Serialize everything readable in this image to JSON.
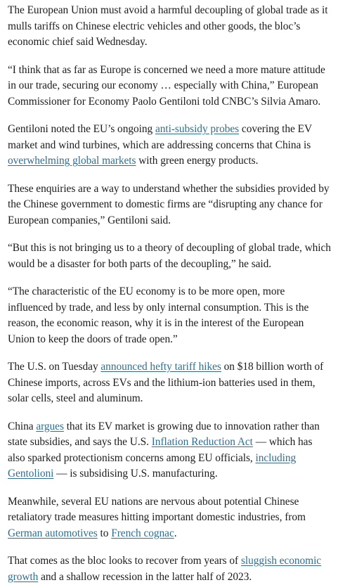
{
  "article": {
    "p1": "The European Union must avoid a harmful decoupling of global trade as it mulls tariffs on Chinese electric vehicles and other goods, the bloc’s economic chief said Wednesday.",
    "p2": "“I think that as far as Europe is concerned we need a more mature attitude in our trade, securing our economy … especially with China,” European Commissioner for Economy Paolo Gentiloni told CNBC’s Silvia Amaro.",
    "p3": {
      "t1": "Gentiloni noted the EU’s ongoing ",
      "l1": "anti-subsidy probes",
      "t2": " covering the EV market and wind turbines, which are addressing concerns that China is ",
      "l2": "overwhelming global markets",
      "t3": " with green energy products."
    },
    "p4": "These enquiries are a way to understand whether the subsidies provided by the Chinese government to domestic firms are “disrupting any chance for European companies,” Gentiloni said.",
    "p5": "“But this is not bringing us to a theory of decoupling of global trade, which would be a disaster for both parts of the decoupling,” he said.",
    "p6": "“The characteristic of the EU economy is to be more open, more influenced by trade, and less by only internal consumption. This is the reason, the economic reason, why it is in the interest of the European Union to keep the doors of trade open.”",
    "p7": {
      "t1": "The U.S. on Tuesday ",
      "l1": "announced hefty tariff hikes",
      "t2": " on $18 billion worth of Chinese imports, across EVs and the lithium-ion batteries used in them, solar cells, steel and aluminum."
    },
    "p8": {
      "t1": "China ",
      "l1": "argues",
      "t2": " that its EV market is growing due to innovation rather than state subsidies, and says the U.S. ",
      "l2": "Inflation Reduction Act",
      "t3": " — which has also sparked protectionism concerns among EU officials, ",
      "l3": "including Gentolioni",
      "t4": " — is subsidising U.S. manufacturing."
    },
    "p9": {
      "t1": "Meanwhile, several EU nations are nervous about potential Chinese retaliatory trade measures hitting important domestic industries, from ",
      "l1": "German automotives",
      "t2": " to ",
      "l2": "French cognac",
      "t3": "."
    },
    "p10": {
      "t1": "That comes as the bloc looks to recover from years of ",
      "l1": "sluggish economic growth",
      "t2": " and a shallow recession in the latter half of 2023."
    }
  },
  "colors": {
    "text": "#1c1c1c",
    "link": "#2f6e91",
    "background": "#ffffff"
  }
}
